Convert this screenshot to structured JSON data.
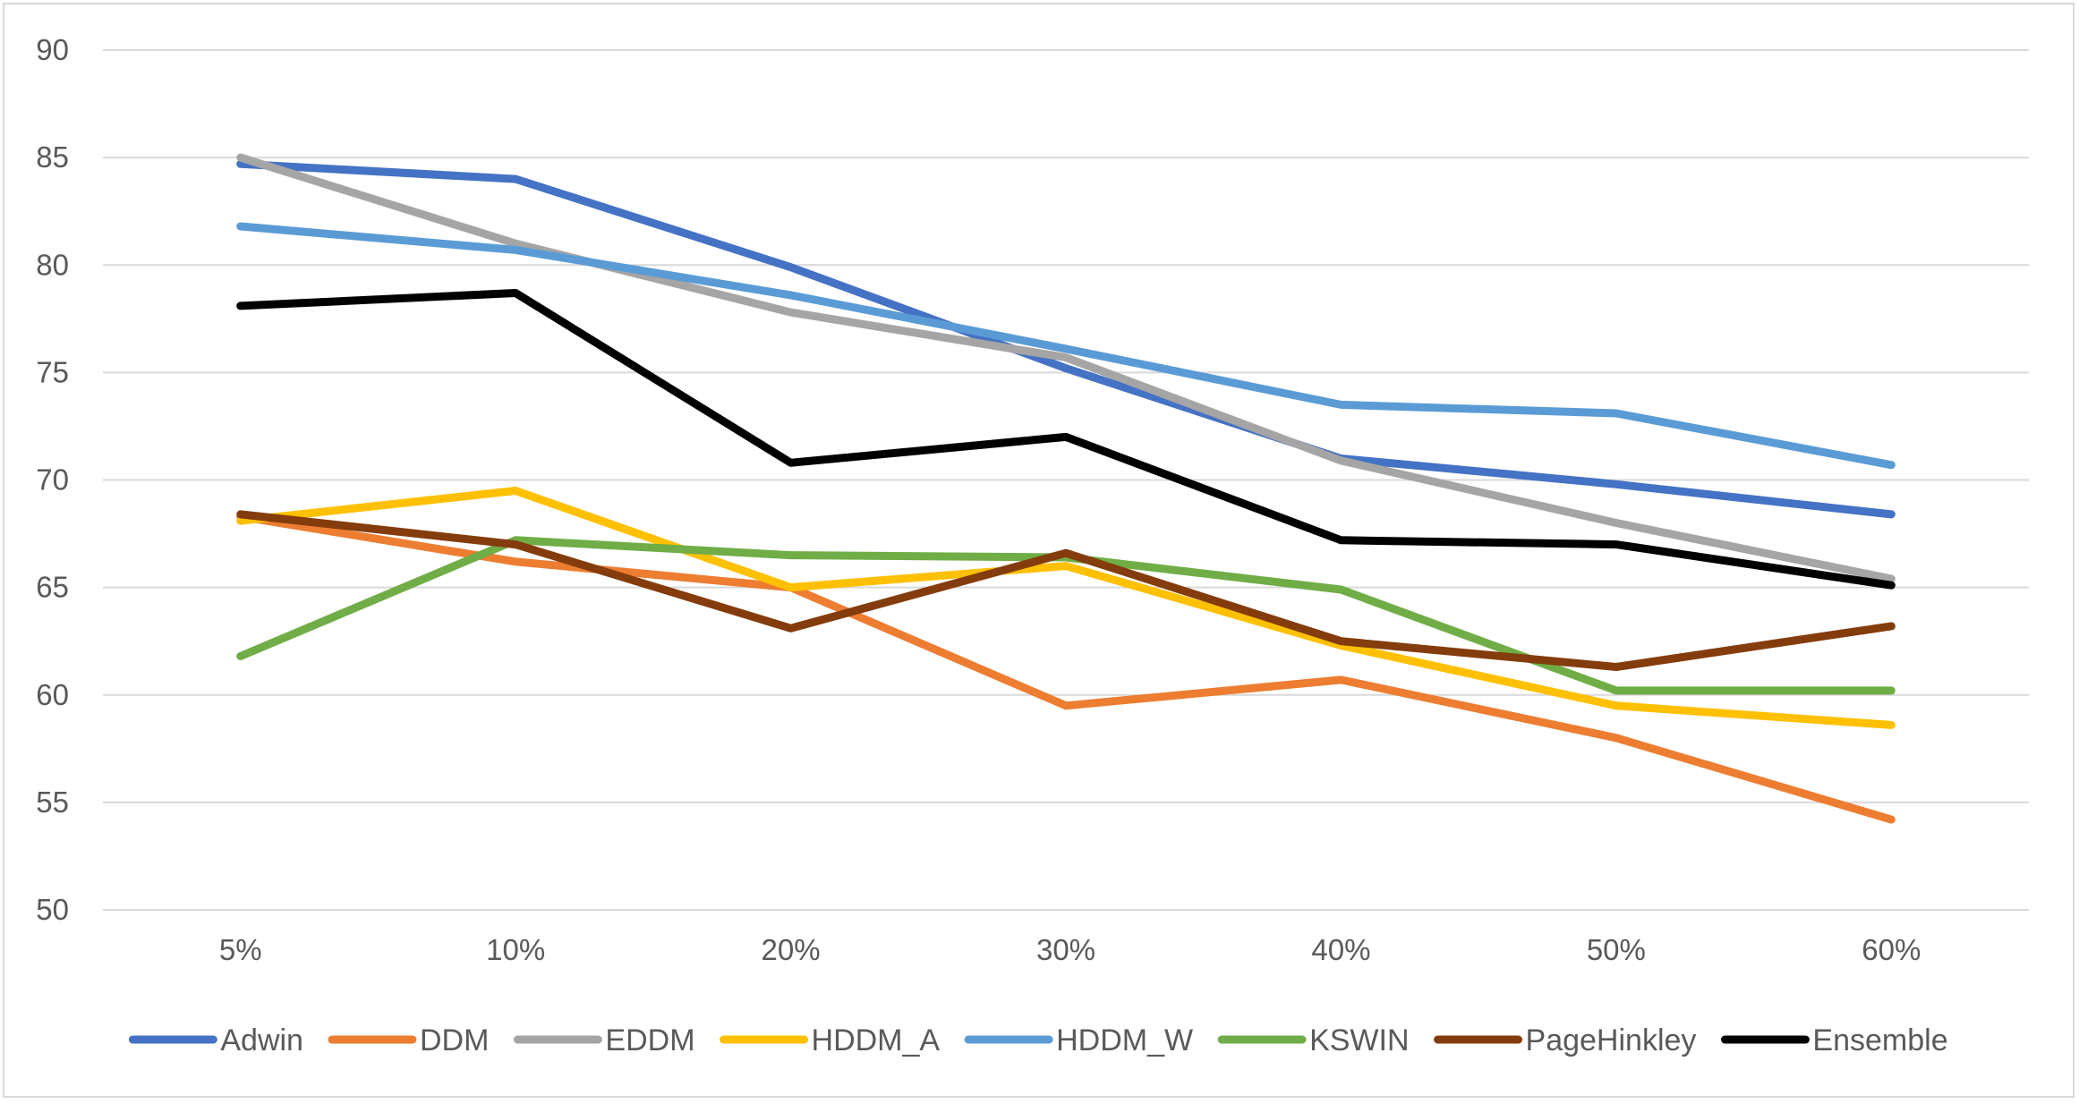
{
  "chart_data": {
    "type": "line",
    "title": "",
    "xlabel": "",
    "ylabel": "",
    "categories": [
      "5%",
      "10%",
      "20%",
      "30%",
      "40%",
      "50%",
      "60%"
    ],
    "ylim": [
      50,
      90
    ],
    "yticks": [
      50,
      55,
      60,
      65,
      70,
      75,
      80,
      85,
      90
    ],
    "grid": true,
    "legend_position": "bottom",
    "series": [
      {
        "name": "Adwin",
        "color": "#4472C4",
        "values": [
          84.7,
          84.0,
          79.9,
          75.2,
          71.0,
          69.8,
          68.4
        ]
      },
      {
        "name": "DDM",
        "color": "#ED7D31",
        "values": [
          68.3,
          66.2,
          65.0,
          59.5,
          60.7,
          58.0,
          54.2
        ]
      },
      {
        "name": "EDDM",
        "color": "#A5A5A5",
        "values": [
          85.0,
          81.0,
          77.8,
          75.7,
          70.9,
          68.0,
          65.4
        ]
      },
      {
        "name": "HDDM_A",
        "color": "#FFC000",
        "values": [
          68.1,
          69.5,
          65.0,
          66.0,
          62.3,
          59.5,
          58.6
        ]
      },
      {
        "name": "HDDM_W",
        "color": "#5B9BD5",
        "values": [
          81.8,
          80.7,
          78.6,
          76.1,
          73.5,
          73.1,
          70.7
        ]
      },
      {
        "name": "KSWIN",
        "color": "#70AD47",
        "values": [
          61.8,
          67.2,
          66.5,
          66.4,
          64.9,
          60.2,
          60.2
        ]
      },
      {
        "name": "PageHinkley",
        "color": "#843C0C",
        "values": [
          68.4,
          67.0,
          63.1,
          66.6,
          62.5,
          61.3,
          63.2
        ]
      },
      {
        "name": "Ensemble",
        "color": "#000000",
        "values": [
          78.1,
          78.7,
          70.8,
          72.0,
          67.2,
          67.0,
          65.1
        ]
      }
    ]
  }
}
